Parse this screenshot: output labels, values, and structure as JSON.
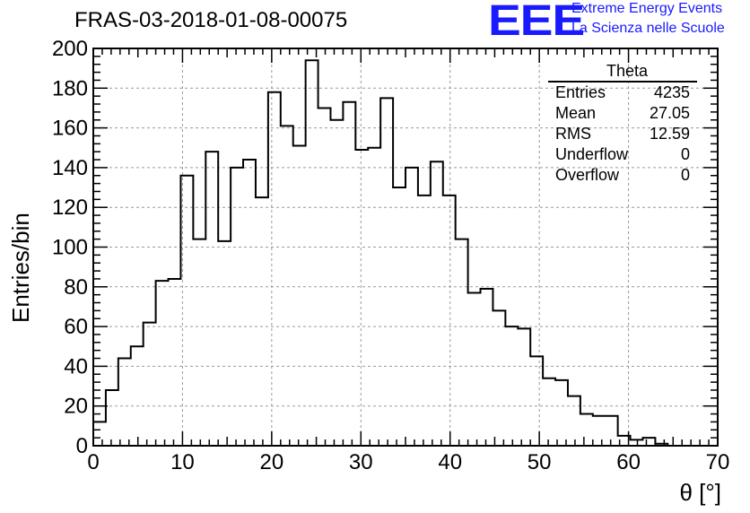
{
  "header": {
    "run_title": "FRAS-03-2018-01-08-00075",
    "logo_text": "EEE",
    "logo_line1": "Extreme Energy Events",
    "logo_line2": "La Scienza nelle Scuole",
    "logo_color": "#1a1aff"
  },
  "stats_box": {
    "name": "Theta",
    "rows": [
      {
        "label": "Entries",
        "value": "4235"
      },
      {
        "label": "Mean",
        "value": "27.05"
      },
      {
        "label": "RMS",
        "value": "12.59"
      },
      {
        "label": "Underflow",
        "value": "0"
      },
      {
        "label": "Overflow",
        "value": "0"
      }
    ]
  },
  "chart_data": {
    "type": "histogram",
    "xlabel": "θ [°]",
    "ylabel": "Entries/bin",
    "xlim": [
      0,
      70
    ],
    "ylim": [
      0,
      200
    ],
    "bin_width": 1.4,
    "x_ticks": [
      0,
      10,
      20,
      30,
      40,
      50,
      60,
      70
    ],
    "y_ticks": [
      0,
      20,
      40,
      60,
      80,
      100,
      120,
      140,
      160,
      180,
      200
    ],
    "grid": true,
    "line_color": "#000000",
    "bin_edges_start": 0,
    "values": [
      12,
      28,
      44,
      50,
      62,
      83,
      84,
      136,
      104,
      148,
      103,
      140,
      144,
      125,
      178,
      161,
      151,
      194,
      170,
      164,
      173,
      149,
      150,
      175,
      130,
      140,
      126,
      143,
      126,
      104,
      77,
      79,
      68,
      60,
      59,
      45,
      34,
      33,
      25,
      16,
      15,
      15,
      5,
      3,
      4,
      1,
      0,
      0,
      0,
      0
    ]
  }
}
